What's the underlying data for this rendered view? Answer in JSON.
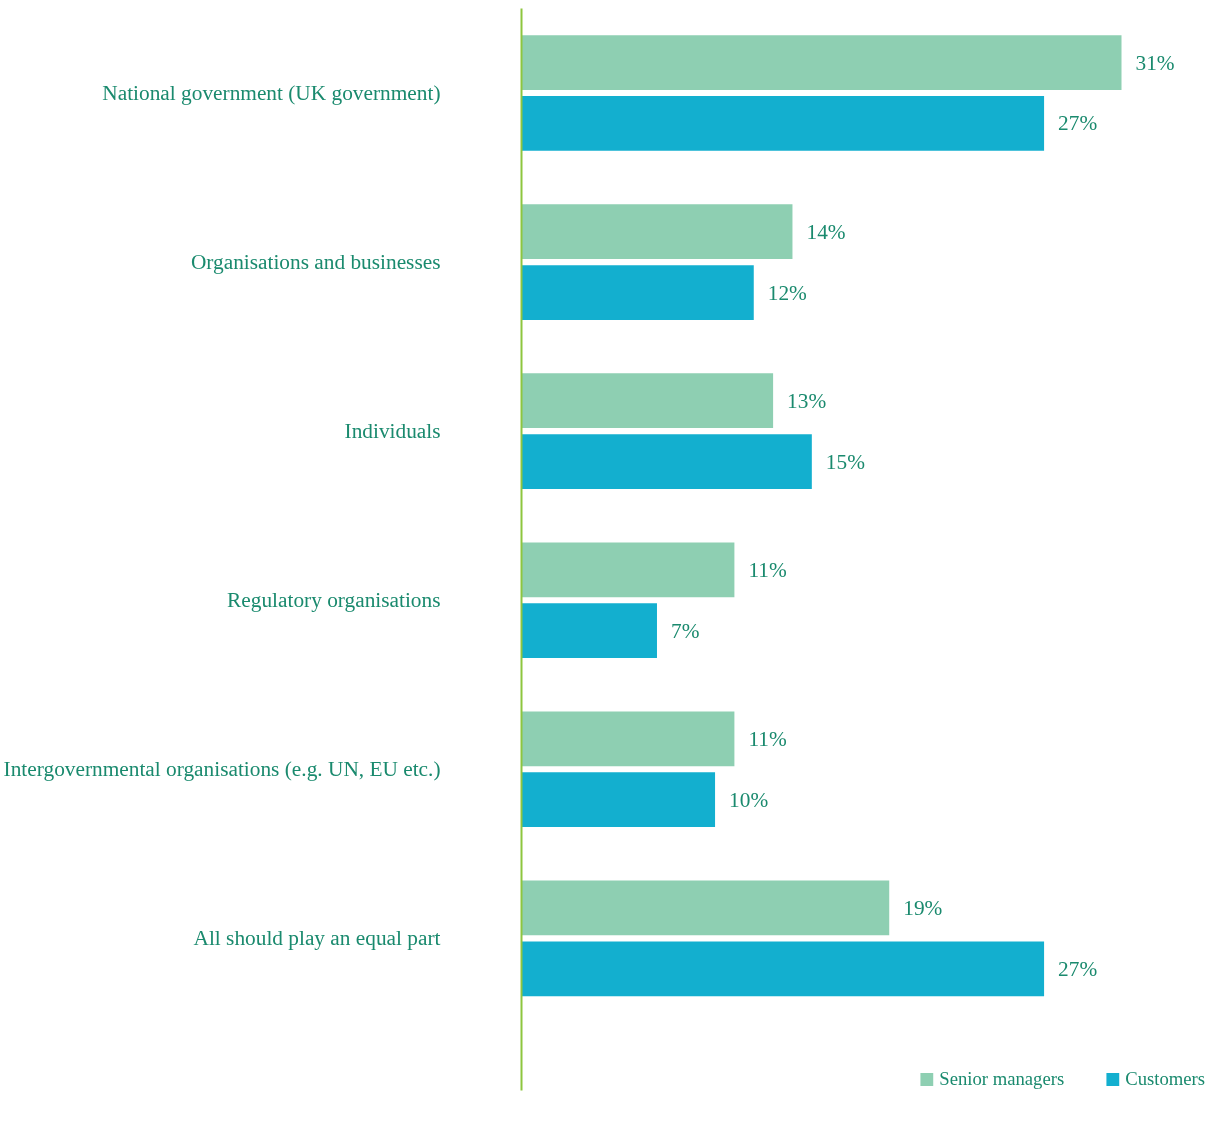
{
  "chart_data": {
    "type": "bar",
    "orientation": "horizontal",
    "categories": [
      "National government (UK government)",
      "Organisations and businesses",
      "Individuals",
      "Regulatory organisations",
      "Intergovernmental organisations (e.g. UN, EU etc.)",
      "All should play an equal part"
    ],
    "series": [
      {
        "name": "Senior managers",
        "color": "#8ecfb2",
        "values": [
          31,
          14,
          13,
          11,
          11,
          19
        ],
        "value_labels": [
          "31%",
          "14%",
          "13%",
          "11%",
          "11%",
          "19%"
        ]
      },
      {
        "name": "Customers",
        "color": "#13afcf",
        "values": [
          27,
          12,
          15,
          7,
          10,
          27
        ],
        "value_labels": [
          "27%",
          "12%",
          "15%",
          "7%",
          "10%",
          "27%"
        ]
      }
    ],
    "legend": "bottom right",
    "grid": false
  }
}
